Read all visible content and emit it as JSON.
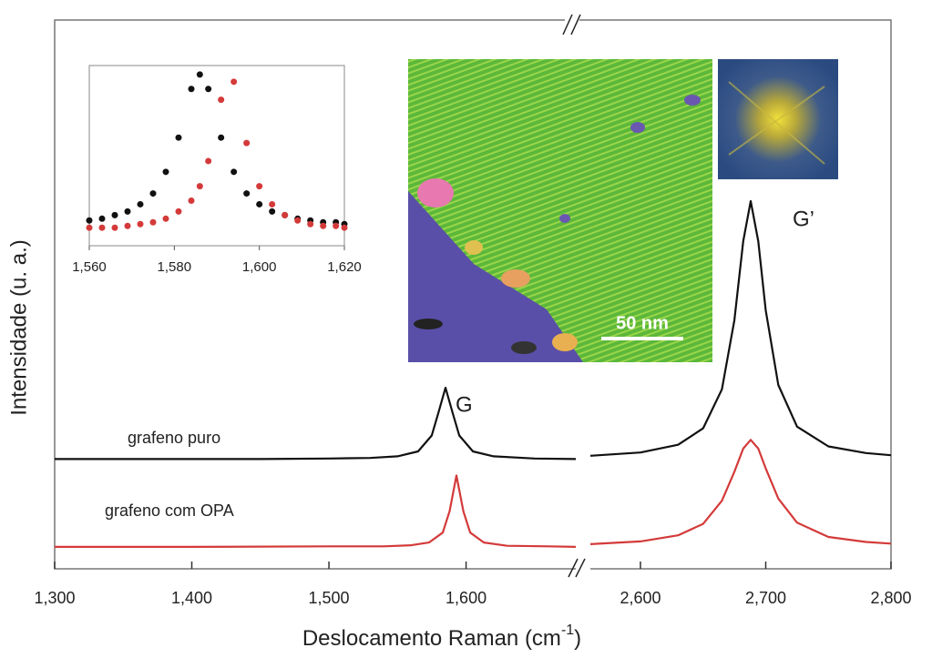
{
  "chart_data": [
    {
      "type": "line",
      "xlabel": {
        "text": "Deslocamento Raman (cm",
        "superscript": "-1",
        "suffix": ")"
      },
      "ylabel": "Intensidade (u. a.)",
      "xlim": [
        [
          1300,
          1680
        ],
        [
          2560,
          2800
        ]
      ],
      "xticks": [
        {
          "value": 1300,
          "label": "1,300"
        },
        {
          "value": 1400,
          "label": "1,400"
        },
        {
          "value": 1500,
          "label": "1,500"
        },
        {
          "value": 1600,
          "label": "1,600"
        },
        {
          "value": 2600,
          "label": "2,600"
        },
        {
          "value": 2700,
          "label": "2,700"
        },
        {
          "value": 2800,
          "label": "2,800"
        }
      ],
      "ylim": [
        0,
        10
      ],
      "annotations": [
        "G",
        "G’"
      ],
      "series": [
        {
          "name": "grafeno puro",
          "color": "#111111",
          "x": [
            1300,
            1350,
            1400,
            1450,
            1500,
            1530,
            1550,
            1565,
            1575,
            1580,
            1585,
            1590,
            1595,
            1605,
            1620,
            1650,
            1680,
            null,
            2560,
            2600,
            2630,
            2650,
            2665,
            2675,
            2682,
            2688,
            2694,
            2700,
            2710,
            2725,
            2750,
            2780,
            2800
          ],
          "values": [
            2.0,
            2.0,
            2.0,
            2.0,
            2.01,
            2.02,
            2.05,
            2.14,
            2.43,
            2.86,
            3.3,
            2.86,
            2.43,
            2.14,
            2.05,
            2.01,
            2.0,
            null,
            2.06,
            2.12,
            2.26,
            2.56,
            3.27,
            4.53,
            5.97,
            6.7,
            5.97,
            4.71,
            3.35,
            2.59,
            2.23,
            2.11,
            2.07
          ]
        },
        {
          "name": "grafeno com OPA",
          "color": "#d43a3a",
          "x": [
            1300,
            1400,
            1500,
            1540,
            1560,
            1573,
            1583,
            1588,
            1593,
            1598,
            1603,
            1613,
            1630,
            1660,
            1680,
            null,
            2560,
            2600,
            2630,
            2650,
            2665,
            2675,
            2682,
            2688,
            2694,
            2700,
            2710,
            2725,
            2750,
            2780,
            2800
          ],
          "values": [
            0.4,
            0.4,
            0.41,
            0.41,
            0.43,
            0.48,
            0.66,
            1.05,
            1.7,
            1.05,
            0.66,
            0.48,
            0.42,
            0.41,
            0.4,
            null,
            0.45,
            0.5,
            0.61,
            0.82,
            1.24,
            1.77,
            2.19,
            2.35,
            2.19,
            1.83,
            1.28,
            0.84,
            0.58,
            0.49,
            0.46
          ]
        }
      ]
    },
    {
      "type": "scatter",
      "xlim": [
        1560,
        1620
      ],
      "xticks": [
        {
          "value": 1560,
          "label": "1,560"
        },
        {
          "value": 1580,
          "label": "1,580"
        },
        {
          "value": 1600,
          "label": "1,600"
        },
        {
          "value": 1620,
          "label": "1,620"
        }
      ],
      "ylim": [
        0,
        1
      ],
      "series": [
        {
          "color": "#111111",
          "x": [
            1560,
            1563,
            1566,
            1569,
            1572,
            1575,
            1578,
            1581,
            1584,
            1586,
            1588,
            1591,
            1594,
            1597,
            1600,
            1603,
            1606,
            1609,
            1612,
            1615,
            1618,
            1620
          ],
          "values": [
            0.14,
            0.15,
            0.17,
            0.19,
            0.23,
            0.29,
            0.41,
            0.6,
            0.87,
            0.95,
            0.87,
            0.6,
            0.41,
            0.29,
            0.23,
            0.19,
            0.17,
            0.15,
            0.14,
            0.13,
            0.13,
            0.12
          ]
        },
        {
          "color": "#d43a3a",
          "x": [
            1560,
            1563,
            1566,
            1569,
            1572,
            1575,
            1578,
            1581,
            1584,
            1586,
            1588,
            1591,
            1594,
            1597,
            1600,
            1603,
            1606,
            1609,
            1612,
            1615,
            1618,
            1620
          ],
          "values": [
            0.1,
            0.1,
            0.1,
            0.11,
            0.12,
            0.13,
            0.15,
            0.19,
            0.25,
            0.33,
            0.47,
            0.81,
            0.91,
            0.57,
            0.33,
            0.23,
            0.17,
            0.14,
            0.12,
            0.11,
            0.11,
            0.1
          ]
        }
      ]
    }
  ],
  "image": {
    "scale_bar": "50 nm"
  }
}
